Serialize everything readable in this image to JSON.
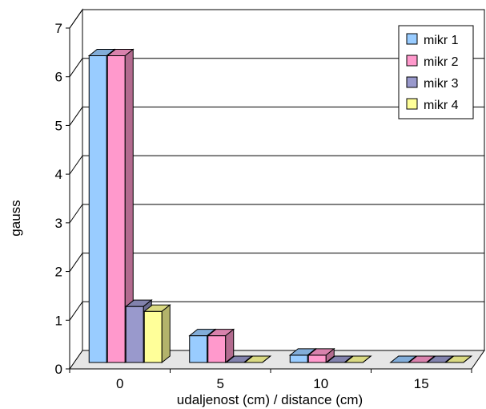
{
  "chart_data": {
    "type": "bar",
    "style": "3d-clustered-column",
    "xlabel": "udaljenost (cm) / distance (cm)",
    "ylabel": "gauss",
    "categories": [
      "0",
      "5",
      "10",
      "15"
    ],
    "ylim": [
      0,
      7
    ],
    "yticks": [
      "0",
      "1",
      "2",
      "3",
      "4",
      "5",
      "6",
      "7"
    ],
    "grid": true,
    "legend_position": "top-right",
    "series": [
      {
        "name": "mikr 1",
        "color": "#99ccff",
        "values": [
          6.3,
          0.55,
          0.15,
          0
        ]
      },
      {
        "name": "mikr 2",
        "color": "#ff99cc",
        "values": [
          6.3,
          0.55,
          0.15,
          0
        ]
      },
      {
        "name": "mikr 3",
        "color": "#9999cc",
        "values": [
          1.15,
          0,
          0,
          0
        ]
      },
      {
        "name": "mikr 4",
        "color": "#ffff99",
        "values": [
          1.05,
          0,
          0,
          0
        ]
      }
    ]
  }
}
